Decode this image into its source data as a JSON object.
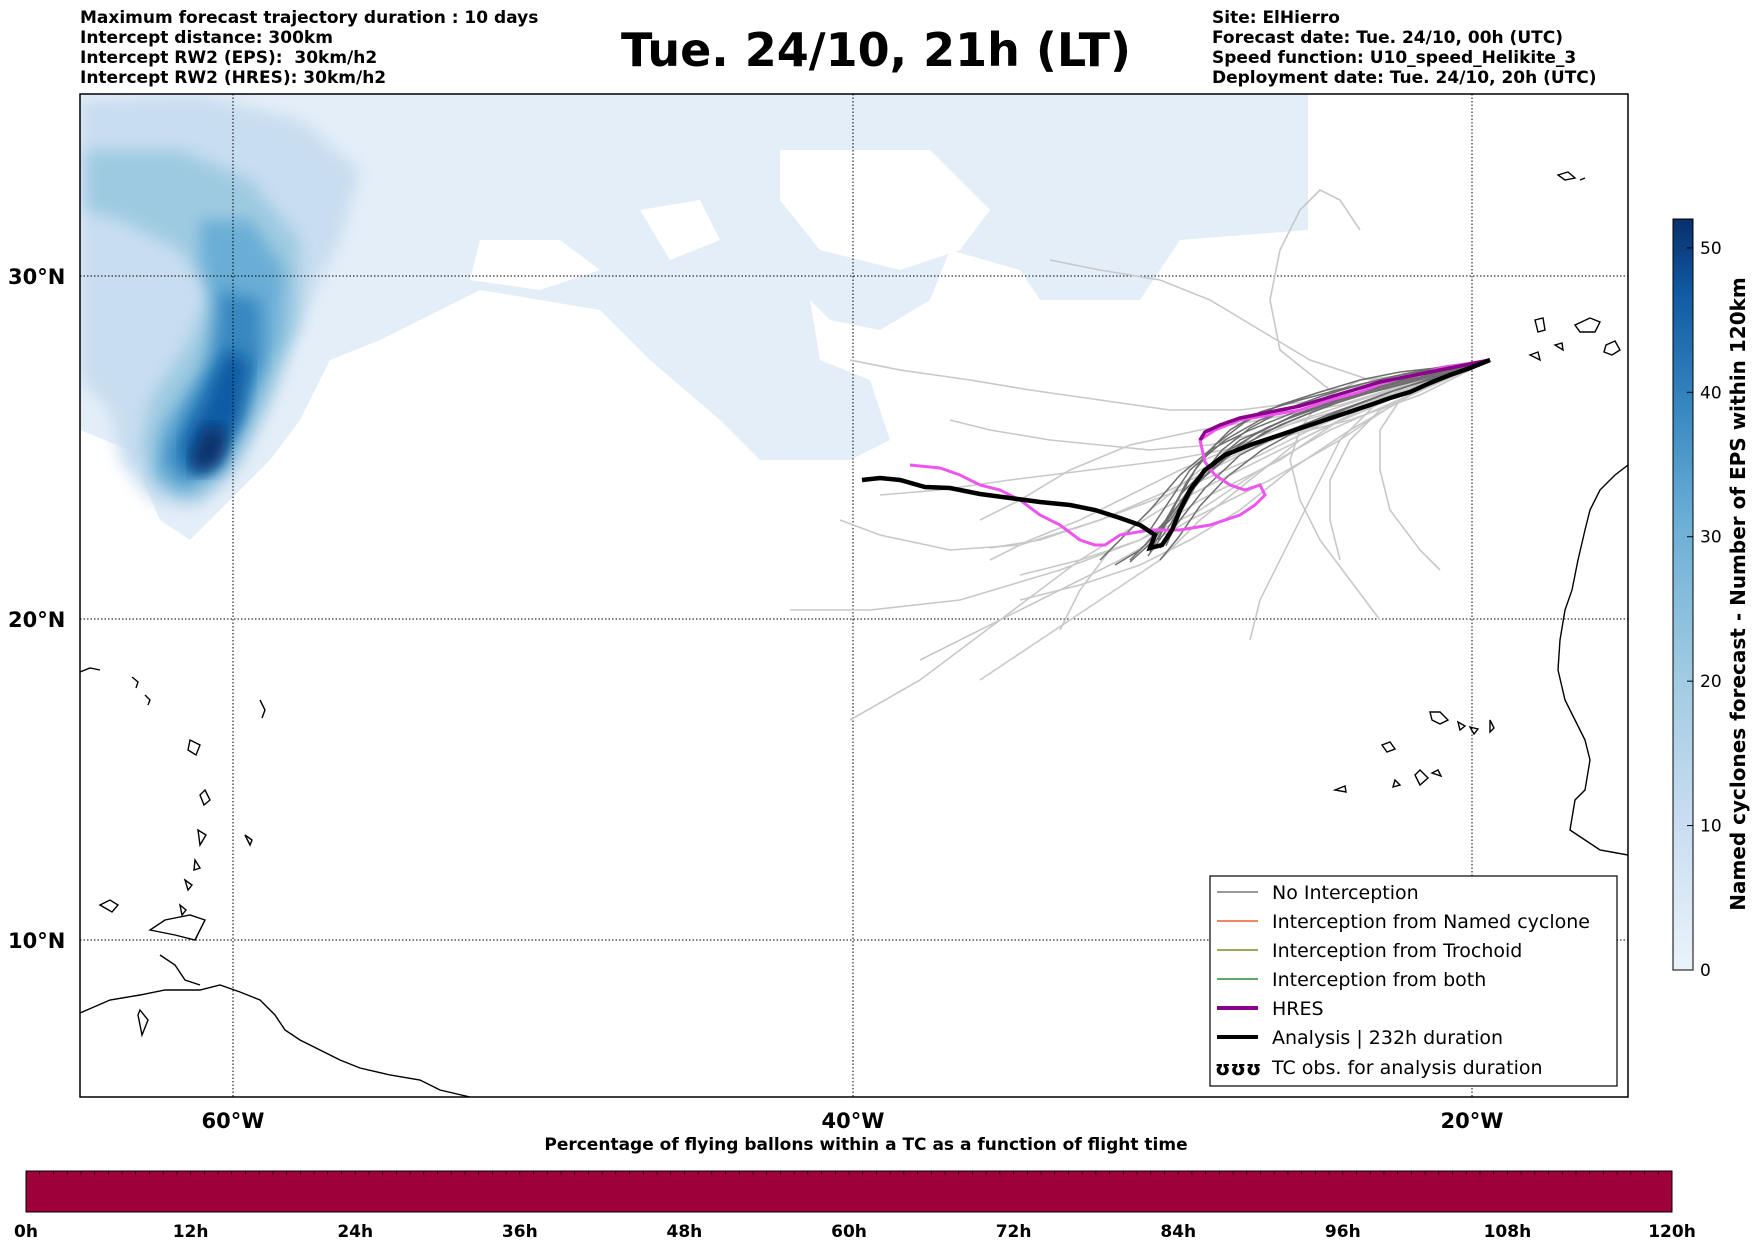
{
  "header": {
    "left_lines": [
      "Maximum forecast trajectory duration : 10 days",
      "Intercept distance: 300km",
      "Intercept RW2 (EPS):  30km/h2",
      "Intercept RW2 (HRES): 30km/h2"
    ],
    "title": "Tue. 24/10, 21h (LT)",
    "right_lines": [
      "Site: ElHierro",
      "Forecast date: Tue. 24/10, 00h (UTC)",
      "Speed function: U10_speed_Helikite_3",
      "Deployment date: Tue. 24/10, 20h (UTC)"
    ]
  },
  "map": {
    "lat_labels": [
      "30°N",
      "20°N",
      "10°N"
    ],
    "lon_labels": [
      "60°W",
      "40°W",
      "20°W"
    ],
    "gridlines": "dotted"
  },
  "legend": {
    "items": [
      {
        "label": "No Interception",
        "color": "#7a7a7a",
        "style": "thin"
      },
      {
        "label": "Interception from Named cyclone",
        "color": "#e8602c",
        "style": "thin"
      },
      {
        "label": "Interception from Trochoid",
        "color": "#7c8a2a",
        "style": "thin"
      },
      {
        "label": "Interception from both",
        "color": "#2a8a3a",
        "style": "thin"
      },
      {
        "label": "HRES",
        "color": "#8b008b",
        "style": "thick"
      },
      {
        "label": "Analysis | 232h duration",
        "color": "#000000",
        "style": "thick"
      },
      {
        "label": "TC obs. for analysis duration",
        "color": "#000000",
        "style": "symbol",
        "symbol_text": "ʊʊʊ"
      }
    ]
  },
  "colorbar": {
    "label": "Named cyclones forecast - Number of EPS within 120km",
    "ticks": [
      "0",
      "10",
      "20",
      "30",
      "40",
      "50"
    ],
    "min": 0,
    "max": 52,
    "colors": [
      "#eaf3fb",
      "#c8ddf0",
      "#9ecae1",
      "#6aaed6",
      "#3787c0",
      "#105ba4",
      "#08306b"
    ]
  },
  "timeline": {
    "caption": "Percentage of flying ballons within a TC as a function of flight time",
    "ticks": [
      "0h",
      "12h",
      "24h",
      "36h",
      "48h",
      "60h",
      "72h",
      "84h",
      "96h",
      "108h",
      "120h"
    ],
    "fill_color": "#9e003a",
    "percent_value": 0
  }
}
